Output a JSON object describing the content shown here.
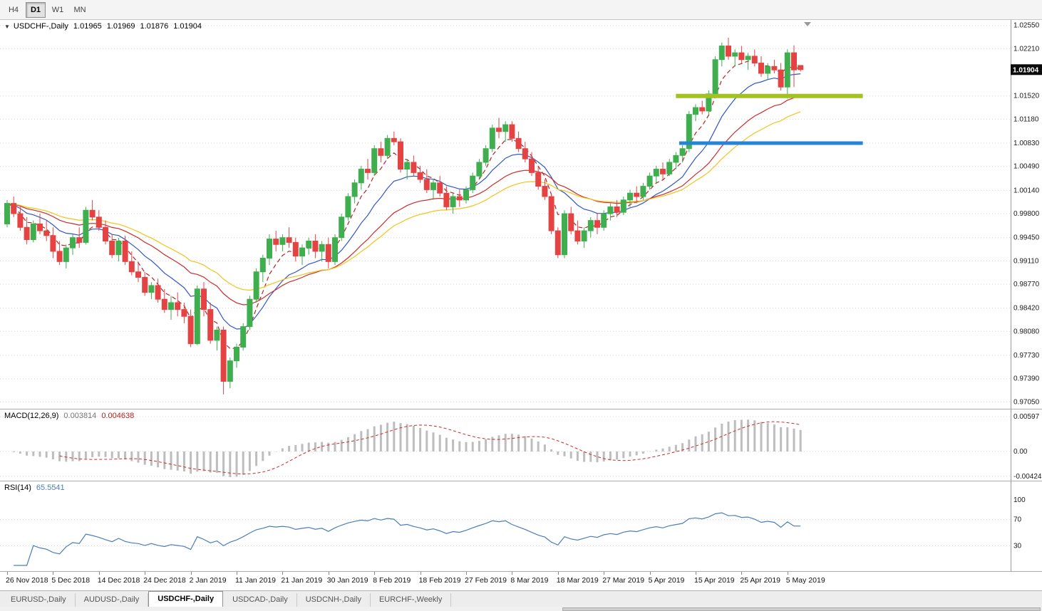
{
  "toolbar": {
    "timeframes": [
      {
        "label": "H4",
        "active": false
      },
      {
        "label": "D1",
        "active": true
      },
      {
        "label": "W1",
        "active": false
      },
      {
        "label": "MN",
        "active": false
      }
    ]
  },
  "icons": {
    "chart_menu": "▼"
  },
  "chart_header": {
    "title": "USDCHF-,Daily",
    "open": "1.01965",
    "high": "1.01969",
    "low": "1.01876",
    "close": "1.01904"
  },
  "macd_header": {
    "name": "MACD(12,26,9)",
    "value_main": "0.003814",
    "value_signal": "0.004638"
  },
  "rsi_header": {
    "name": "RSI(14)",
    "value": "65.5541"
  },
  "tabs": [
    {
      "label": "EURUSD-,Daily",
      "active": false
    },
    {
      "label": "AUDUSD-,Daily",
      "active": false
    },
    {
      "label": "USDCHF-,Daily",
      "active": true
    },
    {
      "label": "USDCAD-,Daily",
      "active": false
    },
    {
      "label": "USDCNH-,Daily",
      "active": false
    },
    {
      "label": "EURCHF-,Weekly",
      "active": false
    }
  ],
  "chart_data": {
    "type": "candlestick",
    "symbol": "USDCHF-",
    "timeframe": "Daily",
    "candle_up_color": "#3fae4f",
    "candle_down_color": "#e54343",
    "price_axis": {
      "labels": [
        "1.02550",
        "1.02210",
        "1.01520",
        "1.01180",
        "1.00830",
        "1.00490",
        "1.00140",
        "0.99800",
        "0.99450",
        "0.99110",
        "0.98770",
        "0.98420",
        "0.98080",
        "0.97730",
        "0.97390",
        "0.97050"
      ],
      "min": 0.9695,
      "max": 1.0263,
      "current_price": "1.01904",
      "current_price_value": 1.01904
    },
    "x_labels": [
      "26 Nov 2018",
      "5 Dec 2018",
      "14 Dec 2018",
      "24 Dec 2018",
      "2 Jan 2019",
      "11 Jan 2019",
      "21 Jan 2019",
      "30 Jan 2019",
      "8 Feb 2019",
      "18 Feb 2019",
      "27 Feb 2019",
      "8 Mar 2019",
      "18 Mar 2019",
      "27 Mar 2019",
      "5 Apr 2019",
      "15 Apr 2019",
      "25 Apr 2019",
      "5 May 2019"
    ],
    "label_interval": 7,
    "candles": [
      [
        0.9965,
        1.0,
        0.996,
        0.9995
      ],
      [
        0.9995,
        1.0005,
        0.9975,
        0.998
      ],
      [
        0.998,
        0.999,
        0.9955,
        0.996
      ],
      [
        0.996,
        0.9975,
        0.9935,
        0.9942
      ],
      [
        0.9942,
        0.997,
        0.9938,
        0.9965
      ],
      [
        0.9965,
        0.998,
        0.995,
        0.9955
      ],
      [
        0.9955,
        0.997,
        0.994,
        0.9948
      ],
      [
        0.9948,
        0.996,
        0.9915,
        0.9925
      ],
      [
        0.9925,
        0.994,
        0.9905,
        0.991
      ],
      [
        0.991,
        0.9935,
        0.99,
        0.993
      ],
      [
        0.993,
        0.995,
        0.992,
        0.9945
      ],
      [
        0.9945,
        0.996,
        0.993,
        0.9938
      ],
      [
        0.9938,
        0.999,
        0.9935,
        0.9985
      ],
      [
        0.9985,
        1.0,
        0.997,
        0.9975
      ],
      [
        0.9975,
        0.9985,
        0.9955,
        0.996
      ],
      [
        0.996,
        0.997,
        0.9935,
        0.994
      ],
      [
        0.994,
        0.995,
        0.9915,
        0.992
      ],
      [
        0.992,
        0.9945,
        0.991,
        0.994
      ],
      [
        0.994,
        0.9948,
        0.9905,
        0.991
      ],
      [
        0.991,
        0.9925,
        0.989,
        0.9895
      ],
      [
        0.9895,
        0.991,
        0.988,
        0.9887
      ],
      [
        0.9887,
        0.9895,
        0.986,
        0.9865
      ],
      [
        0.9865,
        0.988,
        0.9855,
        0.9875
      ],
      [
        0.9875,
        0.9885,
        0.985,
        0.9855
      ],
      [
        0.9855,
        0.987,
        0.9835,
        0.984
      ],
      [
        0.984,
        0.986,
        0.9825,
        0.985
      ],
      [
        0.985,
        0.9865,
        0.983,
        0.984
      ],
      [
        0.984,
        0.985,
        0.982,
        0.983
      ],
      [
        0.983,
        0.984,
        0.9785,
        0.979
      ],
      [
        0.979,
        0.9875,
        0.9788,
        0.987
      ],
      [
        0.987,
        0.988,
        0.983,
        0.984
      ],
      [
        0.984,
        0.985,
        0.979,
        0.9795
      ],
      [
        0.9795,
        0.9815,
        0.978,
        0.981
      ],
      [
        0.981,
        0.9815,
        0.9716,
        0.9735
      ],
      [
        0.9735,
        0.977,
        0.9725,
        0.9765
      ],
      [
        0.9765,
        0.979,
        0.9755,
        0.9785
      ],
      [
        0.9785,
        0.982,
        0.978,
        0.9815
      ],
      [
        0.9815,
        0.986,
        0.981,
        0.9855
      ],
      [
        0.9855,
        0.99,
        0.985,
        0.9895
      ],
      [
        0.9895,
        0.992,
        0.988,
        0.9915
      ],
      [
        0.9915,
        0.995,
        0.9905,
        0.9943
      ],
      [
        0.9943,
        0.9955,
        0.9925,
        0.9935
      ],
      [
        0.9935,
        0.995,
        0.9925,
        0.9945
      ],
      [
        0.9945,
        0.996,
        0.993,
        0.9938
      ],
      [
        0.9938,
        0.9945,
        0.991,
        0.9918
      ],
      [
        0.9918,
        0.9935,
        0.9905,
        0.993
      ],
      [
        0.993,
        0.9945,
        0.992,
        0.994
      ],
      [
        0.994,
        0.995,
        0.9915,
        0.9925
      ],
      [
        0.9925,
        0.994,
        0.991,
        0.9935
      ],
      [
        0.9935,
        0.9945,
        0.99,
        0.991
      ],
      [
        0.991,
        0.995,
        0.9905,
        0.9945
      ],
      [
        0.9945,
        0.998,
        0.994,
        0.9975
      ],
      [
        0.9975,
        1.001,
        0.997,
        1.0005
      ],
      [
        1.0005,
        1.003,
        0.9995,
        1.0025
      ],
      [
        1.0025,
        1.005,
        1.0015,
        1.0045
      ],
      [
        1.0045,
        1.006,
        1.003,
        1.004
      ],
      [
        1.004,
        1.008,
        1.0035,
        1.0075
      ],
      [
        1.0075,
        1.0085,
        1.0055,
        1.0065
      ],
      [
        1.0065,
        1.0095,
        1.006,
        1.009
      ],
      [
        1.009,
        1.01,
        1.008,
        1.0085
      ],
      [
        1.0085,
        1.009,
        1.004,
        1.0045
      ],
      [
        1.0045,
        1.006,
        1.003,
        1.0055
      ],
      [
        1.0055,
        1.0065,
        1.0035,
        1.004
      ],
      [
        1.004,
        1.005,
        1.0025,
        1.003
      ],
      [
        1.003,
        1.0045,
        1.001,
        1.0015
      ],
      [
        1.0015,
        1.003,
        1.0,
        1.0025
      ],
      [
        1.0025,
        1.0035,
        1.0005,
        1.001
      ],
      [
        1.001,
        1.002,
        0.9985,
        0.999
      ],
      [
        0.999,
        1.001,
        0.998,
        1.0005
      ],
      [
        1.0005,
        1.0015,
        0.999,
        1.0
      ],
      [
        1.0,
        1.002,
        0.9995,
        1.0015
      ],
      [
        1.0015,
        1.004,
        1.001,
        1.0035
      ],
      [
        1.0035,
        1.006,
        1.003,
        1.0055
      ],
      [
        1.0055,
        1.008,
        1.005,
        1.0075
      ],
      [
        1.0075,
        1.011,
        1.007,
        1.0105
      ],
      [
        1.0105,
        1.012,
        1.009,
        1.01
      ],
      [
        1.01,
        1.0115,
        1.0085,
        1.011
      ],
      [
        1.011,
        1.0115,
        1.0085,
        1.009
      ],
      [
        1.009,
        1.01,
        1.007,
        1.0075
      ],
      [
        1.0075,
        1.0085,
        1.0055,
        1.006
      ],
      [
        1.006,
        1.007,
        1.0035,
        1.004
      ],
      [
        1.004,
        1.005,
        1.0015,
        1.002
      ],
      [
        1.002,
        1.003,
        1.0,
        1.0005
      ],
      [
        1.0005,
        1.001,
        0.995,
        0.9955
      ],
      [
        0.9955,
        0.996,
        0.9915,
        0.992
      ],
      [
        0.992,
        0.9985,
        0.9915,
        0.998
      ],
      [
        0.998,
        0.999,
        0.995,
        0.9955
      ],
      [
        0.9955,
        0.997,
        0.9935,
        0.994
      ],
      [
        0.994,
        0.996,
        0.993,
        0.9955
      ],
      [
        0.9955,
        0.9975,
        0.9945,
        0.997
      ],
      [
        0.997,
        0.998,
        0.995,
        0.996
      ],
      [
        0.996,
        0.9985,
        0.9955,
        0.998
      ],
      [
        0.998,
        0.9995,
        0.997,
        0.999
      ],
      [
        0.999,
        1.0,
        0.9975,
        0.9982
      ],
      [
        0.9982,
        1.0005,
        0.9978,
        1.0
      ],
      [
        1.0,
        1.0015,
        0.999,
        1.001
      ],
      [
        1.001,
        1.002,
        0.9995,
        1.0005
      ],
      [
        1.0005,
        1.0025,
        1.0,
        1.002
      ],
      [
        1.002,
        1.004,
        1.0015,
        1.0035
      ],
      [
        1.0035,
        1.005,
        1.0025,
        1.0045
      ],
      [
        1.0045,
        1.0055,
        1.003,
        1.0038
      ],
      [
        1.0038,
        1.006,
        1.0035,
        1.0055
      ],
      [
        1.0055,
        1.007,
        1.0045,
        1.0065
      ],
      [
        1.0065,
        1.008,
        1.0055,
        1.0075
      ],
      [
        1.0075,
        1.013,
        1.007,
        1.0125
      ],
      [
        1.0125,
        1.014,
        1.0115,
        1.0135
      ],
      [
        1.0135,
        1.0145,
        1.0125,
        1.013
      ],
      [
        1.013,
        1.016,
        1.0125,
        1.0155
      ],
      [
        1.0155,
        1.021,
        1.015,
        1.0205
      ],
      [
        1.0205,
        1.023,
        1.0195,
        1.0225
      ],
      [
        1.0225,
        1.0237,
        1.0205,
        1.021
      ],
      [
        1.021,
        1.022,
        1.0195,
        1.0215
      ],
      [
        1.0215,
        1.0225,
        1.02,
        1.0205
      ],
      [
        1.0205,
        1.0215,
        1.019,
        1.021
      ],
      [
        1.021,
        1.022,
        1.0195,
        1.02
      ],
      [
        1.02,
        1.021,
        1.018,
        1.0185
      ],
      [
        1.0185,
        1.02,
        1.0175,
        1.0195
      ],
      [
        1.0195,
        1.0205,
        1.0185,
        1.019
      ],
      [
        1.019,
        1.02,
        1.016,
        1.0165
      ],
      [
        1.0165,
        1.022,
        1.0148,
        1.0215
      ],
      [
        1.0215,
        1.0226,
        1.0165,
        1.019
      ],
      [
        1.01965,
        1.01969,
        1.01876,
        1.01904
      ]
    ],
    "moving_averages": [
      {
        "name": "ma-fast-dashed",
        "period": 5,
        "color": "#b22222",
        "dashed": true
      },
      {
        "name": "ma-blue",
        "period": 12,
        "color": "#3056c8",
        "dashed": false
      },
      {
        "name": "ma-red",
        "period": 24,
        "color": "#cc2b2b",
        "dashed": false
      },
      {
        "name": "ma-yellow",
        "period": 34,
        "color": "#f0c419",
        "dashed": false
      }
    ],
    "lines": [
      {
        "name": "resistance-line",
        "value": 1.0152,
        "color": "#a3c121",
        "width": 6,
        "from_index": 102,
        "to_index": 130.5
      },
      {
        "name": "support-line",
        "value": 1.0083,
        "color": "#2484d6",
        "width": 5,
        "from_index": 102.5,
        "to_index": 130.5
      }
    ],
    "macd": {
      "fast": 12,
      "slow": 26,
      "signal_period": 9,
      "axis_labels": [
        "0.00597",
        "0.00",
        "-0.00424"
      ],
      "axis_values": [
        0.00597,
        0,
        -0.00424
      ],
      "range": {
        "min": -0.005,
        "max": 0.0072
      },
      "bar_color": "#bdbdbd",
      "signal_color": "#cc2b2b"
    },
    "rsi": {
      "period": 14,
      "levels": [
        70,
        30
      ],
      "axis_labels": [
        "100",
        "70",
        "30"
      ],
      "axis_values": [
        100,
        70,
        30
      ],
      "color": "#4a7ebb",
      "range": {
        "min": 0,
        "max": 100
      }
    }
  }
}
